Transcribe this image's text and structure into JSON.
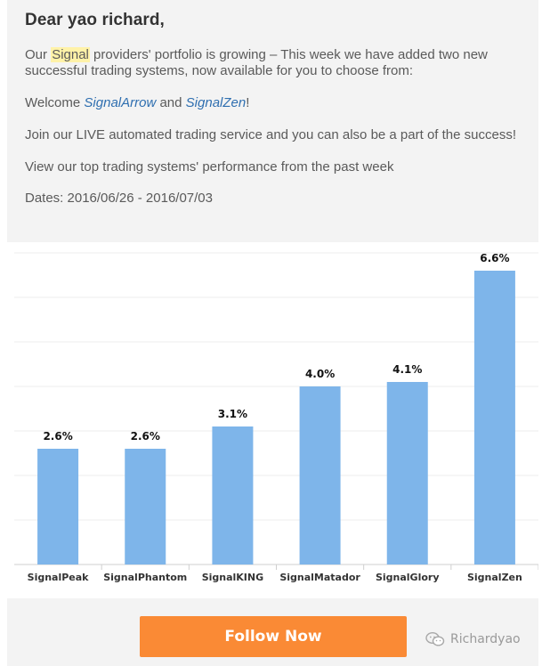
{
  "greeting": "Dear yao richard,",
  "intro": {
    "p1_pre": "Our ",
    "p1_highlight": "Signal",
    "p1_post": " providers' portfolio is growing – This week we have added two new successful trading systems, now available for you to choose from:",
    "p2_pre": "Welcome ",
    "p2_link1": "SignalArrow",
    "p2_mid": " and ",
    "p2_link2": "SignalZen",
    "p2_post": "!",
    "p3": "Join our LIVE automated trading service and you can also be a part of the success!",
    "p4": "View our top trading systems' performance from the past week",
    "dates": "Dates: 2016/06/26 - 2016/07/03"
  },
  "chart_data": {
    "type": "bar",
    "categories": [
      "SignalPeak",
      "SignalPhantom",
      "SignalKING",
      "SignalMatador",
      "SignalGlory",
      "SignalZen"
    ],
    "values": [
      2.6,
      2.6,
      3.1,
      4.0,
      4.1,
      6.6
    ],
    "data_labels": [
      "2.6%",
      "2.6%",
      "3.1%",
      "4.0%",
      "4.1%",
      "6.6%"
    ],
    "ylim": [
      0,
      7
    ],
    "grid": true,
    "bar_color": "#7eb5ea"
  },
  "footer": {
    "button_label": "Follow Now",
    "button_color": "#fa8a35",
    "watermark_text": "Richardyao",
    "watermark_icon": "wechat-icon"
  }
}
